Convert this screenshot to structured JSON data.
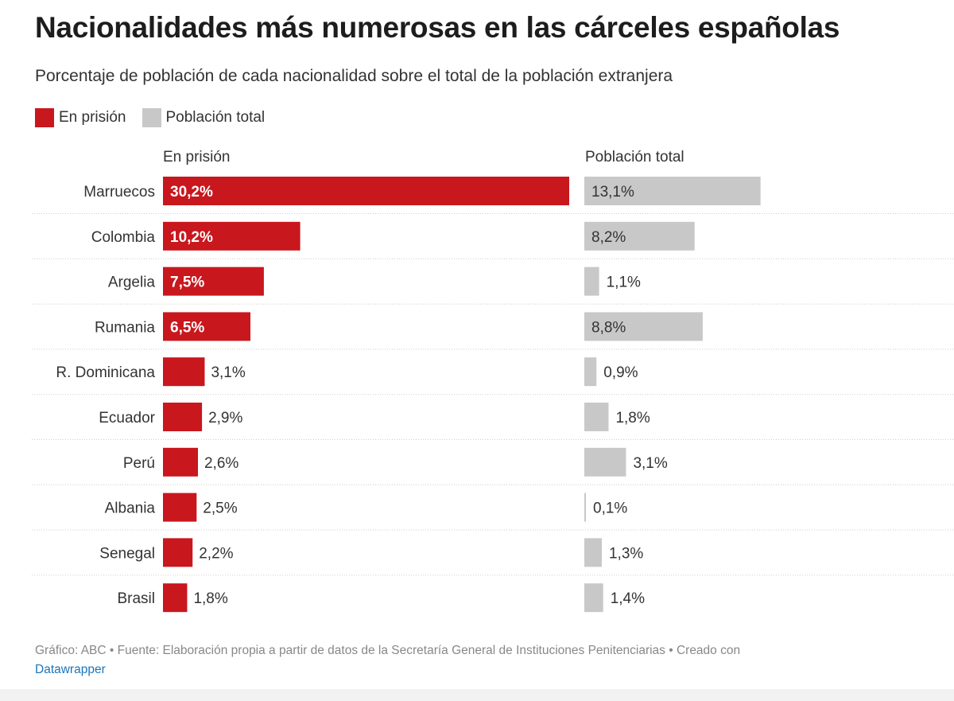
{
  "header": {
    "title": "Nacionalidades más numerosas en las cárceles españolas",
    "subtitle": "Porcentaje de población de cada nacionalidad sobre el total de la población extranjera"
  },
  "legend": {
    "items": [
      {
        "label": "En prisión",
        "color": "#c8171d"
      },
      {
        "label": "Población total",
        "color": "#c8c8c8"
      }
    ]
  },
  "columns": {
    "left_label": "En prisión",
    "right_label": "Población total"
  },
  "chart_data": {
    "type": "bar",
    "categories": [
      "Marruecos",
      "Colombia",
      "Argelia",
      "Rumania",
      "R. Dominicana",
      "Ecuador",
      "Perú",
      "Albania",
      "Senegal",
      "Brasil"
    ],
    "series": [
      {
        "name": "En prisión",
        "color": "#c8171d",
        "values": [
          30.2,
          10.2,
          7.5,
          6.5,
          3.1,
          2.9,
          2.6,
          2.5,
          2.2,
          1.8
        ],
        "labels": [
          "30,2%",
          "10,2%",
          "7,5%",
          "6,5%",
          "3,1%",
          "2,9%",
          "2,6%",
          "2,5%",
          "2,2%",
          "1,8%"
        ]
      },
      {
        "name": "Población total",
        "color": "#c8c8c8",
        "values": [
          13.1,
          8.2,
          1.1,
          8.8,
          0.9,
          1.8,
          3.1,
          0.1,
          1.3,
          1.4
        ],
        "labels": [
          "13,1%",
          "8,2%",
          "1,1%",
          "8,8%",
          "0,9%",
          "1,8%",
          "3,1%",
          "0,1%",
          "1,3%",
          "1,4%"
        ]
      }
    ],
    "xlim": [
      0,
      30.2
    ],
    "grid": false,
    "legend_position": "top-left"
  },
  "footer": {
    "text": "Gráfico: ABC • Fuente: Elaboración propia a partir de datos de la Secretaría General de Instituciones Penitenciarias • Creado con",
    "link": "Datawrapper"
  }
}
